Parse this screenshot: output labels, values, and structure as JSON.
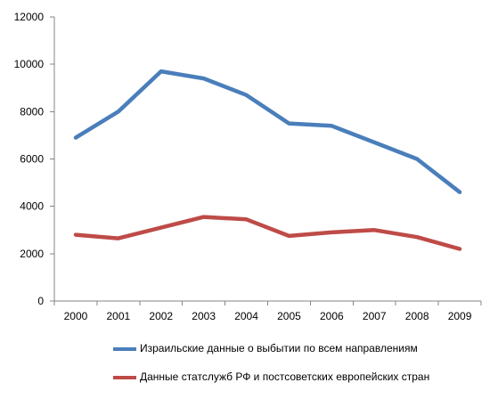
{
  "chart_data": {
    "type": "line",
    "title": "",
    "xlabel": "",
    "ylabel": "",
    "categories": [
      "2000",
      "2001",
      "2002",
      "2003",
      "2004",
      "2005",
      "2006",
      "2007",
      "2008",
      "2009"
    ],
    "ylim": [
      0,
      12000
    ],
    "yticks": [
      "0",
      "2000",
      "4000",
      "6000",
      "8000",
      "10000",
      "12000"
    ],
    "grid": false,
    "legend_position": "bottom",
    "series": [
      {
        "name": "Израильские данные о выбытии по всем направлениям",
        "color": "#4a7ebb",
        "values": [
          6900,
          8000,
          9700,
          9400,
          8700,
          7500,
          7400,
          6700,
          6000,
          4600
        ]
      },
      {
        "name": "Данные статслужб РФ и постсоветских европейских стран",
        "color": "#be4b48",
        "values": [
          2800,
          2650,
          3100,
          3550,
          3450,
          2750,
          2900,
          3000,
          2700,
          2200
        ]
      }
    ]
  }
}
